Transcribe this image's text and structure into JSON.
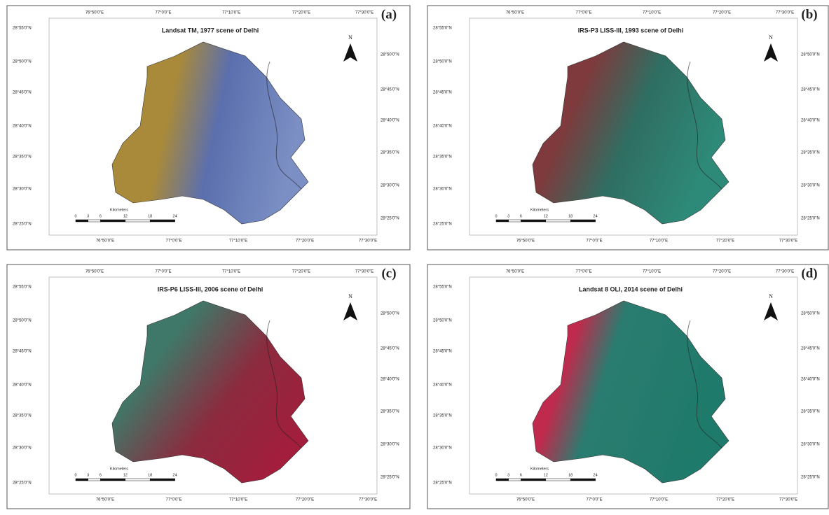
{
  "panels": [
    {
      "label": "(a)",
      "title": "Landsat TM, 1977 scene of Delhi"
    },
    {
      "label": "(b)",
      "title": "IRS-P3 LISS-III, 1993 scene of Delhi"
    },
    {
      "label": "(c)",
      "title": "IRS-P6 LISS-III, 2006 scene of Delhi"
    },
    {
      "label": "(d)",
      "title": "Landsat 8 OLI, 2014 scene of Delhi"
    }
  ],
  "graticule": {
    "longitudes": [
      "76°50'0\"E",
      "77°0'0\"E",
      "77°10'0\"E",
      "77°20'0\"E",
      "77°30'0\"E"
    ],
    "latitudes": [
      "28°55'0\"N",
      "28°50'0\"N",
      "28°45'0\"N",
      "28°40'0\"N",
      "28°35'0\"N",
      "28°30'0\"N",
      "28°25'0\"N"
    ]
  },
  "north": "N",
  "scale": {
    "unit": "Kilometers",
    "ticks": [
      "0",
      "3",
      "6",
      "12",
      "18",
      "24"
    ]
  }
}
